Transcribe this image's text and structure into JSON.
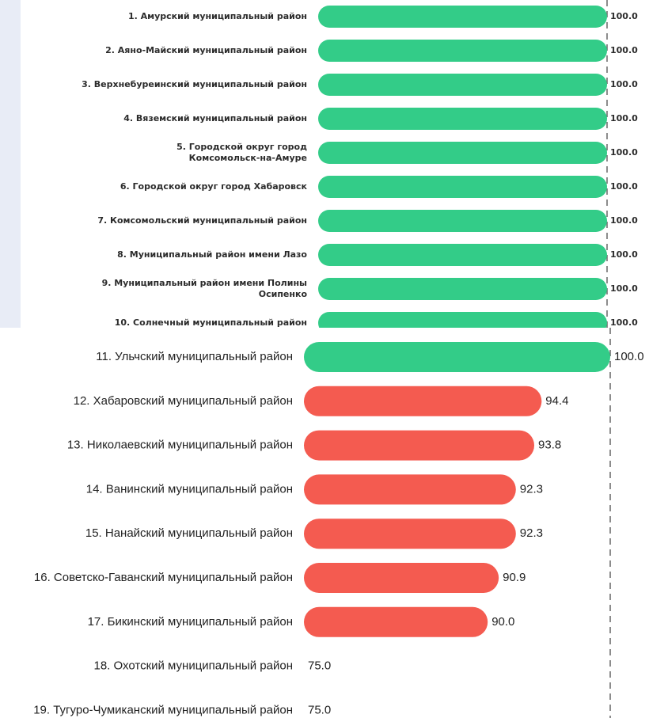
{
  "colors": {
    "pass": "#33cc88",
    "fail": "#f45b50",
    "ref_line": "#666666"
  },
  "chart_data": [
    {
      "type": "bar",
      "orientation": "horizontal",
      "xlim": [
        0,
        100
      ],
      "reference_line": 100,
      "categories": [
        "1. Амурский муниципальный район",
        "2. Аяно-Майский муниципальный район",
        "3. Верхнебуреинский муниципальный район",
        "4. Вяземский муниципальный район",
        "5. Городской округ город Комсомольск-на-Амуре",
        "6. Городской округ город Хабаровск",
        "7. Комсомольский муниципальный район",
        "8. Муниципальный район имени Лазо",
        "9. Муниципальный район имени Полины Осипенко",
        "10. Солнечный муниципальный район"
      ],
      "values": [
        100,
        100,
        100,
        100,
        100,
        100,
        100,
        100,
        100,
        100
      ],
      "value_labels": [
        "100.0",
        "100.0",
        "100.0",
        "100.0",
        "100.0",
        "100.0",
        "100.0",
        "100.0",
        "100.0",
        "100.0"
      ],
      "bar_colors": [
        "#33cc88",
        "#33cc88",
        "#33cc88",
        "#33cc88",
        "#33cc88",
        "#33cc88",
        "#33cc88",
        "#33cc88",
        "#33cc88",
        "#33cc88"
      ]
    },
    {
      "type": "bar",
      "orientation": "horizontal",
      "xlim": [
        75,
        100
      ],
      "reference_line": 100,
      "categories": [
        "11. Ульчский муниципальный район",
        "12. Хабаровский муниципальный район",
        "13. Николаевский муниципальный район",
        "14. Ванинский муниципальный район",
        "15. Нанайский муниципальный район",
        "16. Советско-Гаванский муниципальный район",
        "17. Бикинский муниципальный район",
        "18. Охотский муниципальный район",
        "19. Тугуро-Чумиканский муниципальный район"
      ],
      "values": [
        100.0,
        94.4,
        93.8,
        92.3,
        92.3,
        90.9,
        90.0,
        75.0,
        75.0
      ],
      "value_labels": [
        "100.0",
        "94.4",
        "93.8",
        "92.3",
        "92.3",
        "90.9",
        "90.0",
        "75.0",
        "75.0"
      ],
      "bar_colors": [
        "#33cc88",
        "#f45b50",
        "#f45b50",
        "#f45b50",
        "#f45b50",
        "#f45b50",
        "#f45b50",
        "#f45b50",
        "#f45b50"
      ]
    }
  ]
}
